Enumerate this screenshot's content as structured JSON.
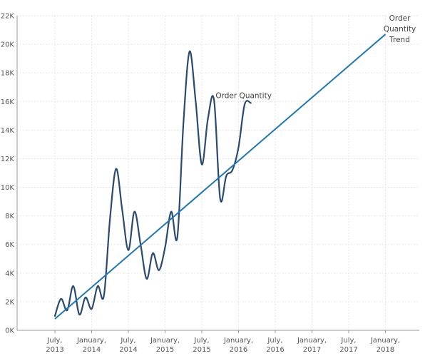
{
  "chart_data": {
    "type": "line",
    "title": "",
    "xlabel": "",
    "ylabel": "",
    "x_ticks": [
      "July, 2013",
      "January, 2014",
      "July, 2014",
      "January, 2015",
      "July, 2015",
      "January, 2016",
      "July, 2016",
      "January, 2017",
      "July, 2017",
      "January, 2018"
    ],
    "y_ticks": [
      "0K",
      "2K",
      "4K",
      "6K",
      "8K",
      "10K",
      "12K",
      "14K",
      "16K",
      "18K",
      "20K",
      "22K"
    ],
    "ylim": [
      0,
      22000
    ],
    "grid": true,
    "legend": "none",
    "series": [
      {
        "name": "Order Quantity",
        "color": "#2b4a6f",
        "label_lines": [
          "Order Quantity"
        ],
        "points": [
          [
            "2013-07",
            1000
          ],
          [
            "2013-08",
            2200
          ],
          [
            "2013-09",
            1400
          ],
          [
            "2013-10",
            3100
          ],
          [
            "2013-11",
            1100
          ],
          [
            "2013-12",
            2300
          ],
          [
            "2014-01",
            1500
          ],
          [
            "2014-02",
            3100
          ],
          [
            "2014-03",
            2400
          ],
          [
            "2014-04",
            7800
          ],
          [
            "2014-05",
            11300
          ],
          [
            "2014-06",
            8400
          ],
          [
            "2014-07",
            5600
          ],
          [
            "2014-08",
            8300
          ],
          [
            "2014-09",
            6000
          ],
          [
            "2014-10",
            3600
          ],
          [
            "2014-11",
            5400
          ],
          [
            "2014-12",
            4200
          ],
          [
            "2015-01",
            5800
          ],
          [
            "2015-02",
            8300
          ],
          [
            "2015-03",
            6500
          ],
          [
            "2015-04",
            14500
          ],
          [
            "2015-05",
            19500
          ],
          [
            "2015-06",
            16000
          ],
          [
            "2015-07",
            11600
          ],
          [
            "2015-08",
            14800
          ],
          [
            "2015-09",
            16100
          ],
          [
            "2015-10",
            9200
          ],
          [
            "2015-11",
            10800
          ],
          [
            "2015-12",
            11200
          ],
          [
            "2016-01",
            12800
          ],
          [
            "2016-02",
            15800
          ],
          [
            "2016-03",
            15900
          ]
        ]
      },
      {
        "name": "Order Quantity Trend",
        "color": "#1f77b4",
        "label_lines": [
          "Order",
          "Quantity",
          "Trend"
        ],
        "points": [
          [
            "2013-07",
            800
          ],
          [
            "2018-01",
            20700
          ]
        ]
      }
    ]
  }
}
